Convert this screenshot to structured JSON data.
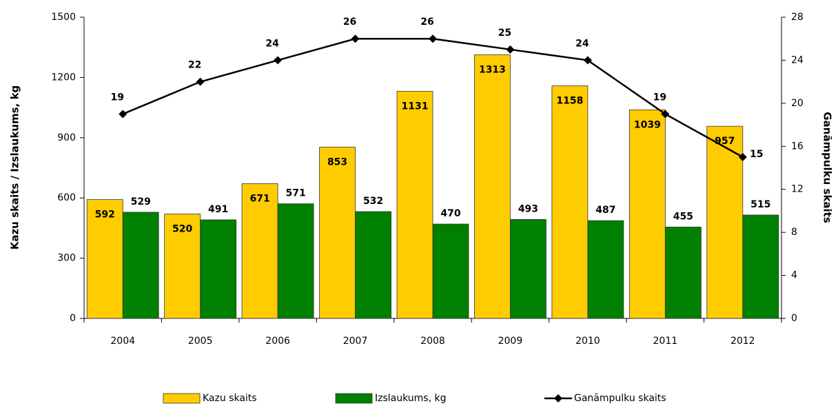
{
  "chart_data": {
    "type": "bar",
    "categories": [
      "2004",
      "2005",
      "2006",
      "2007",
      "2008",
      "2009",
      "2010",
      "2011",
      "2012"
    ],
    "ylabel": "Kazu skaits / Izslaukums, kg",
    "y2label": "Ganāmpulku skaits",
    "ylim": [
      0,
      1500
    ],
    "yticks": [
      0,
      300,
      600,
      900,
      1200,
      1500
    ],
    "y2lim": [
      0,
      28
    ],
    "y2ticks": [
      0,
      4,
      8,
      12,
      16,
      20,
      24,
      28
    ],
    "legend": "bottom",
    "series": [
      {
        "name": "Kazu skaits",
        "type": "bar",
        "color": "#ffcc00",
        "values": [
          592,
          520,
          671,
          853,
          1131,
          1313,
          1158,
          1039,
          957
        ]
      },
      {
        "name": "Izslaukums, kg",
        "type": "bar",
        "color": "#008000",
        "values": [
          529,
          491,
          571,
          532,
          470,
          493,
          487,
          455,
          515
        ]
      },
      {
        "name": "Ganāmpulku skaits",
        "type": "line",
        "axis": "y2",
        "color": "#000000",
        "values": [
          19,
          22,
          24,
          26,
          26,
          25,
          24,
          19,
          15
        ]
      }
    ]
  }
}
